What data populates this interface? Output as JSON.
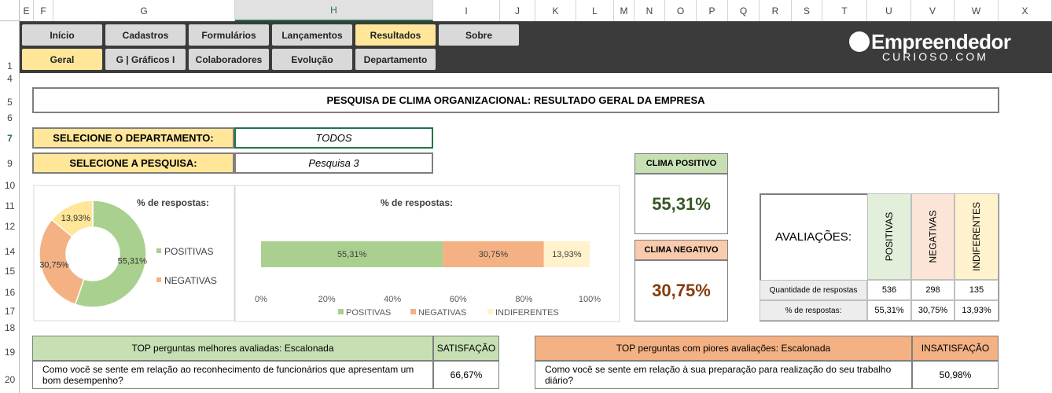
{
  "sheet": {
    "column_headers": [
      "E",
      "F",
      "G",
      "H",
      "I",
      "J",
      "K",
      "L",
      "M",
      "N",
      "O",
      "P",
      "Q",
      "R",
      "S",
      "T",
      "U",
      "V",
      "W",
      "X"
    ],
    "row_headers": [
      "1",
      "4",
      "5",
      "6",
      "7",
      "9",
      "10",
      "11",
      "12",
      "14",
      "15",
      "16",
      "17",
      "18",
      "19",
      "20"
    ]
  },
  "nav": {
    "row1": [
      "Início",
      "Cadastros",
      "Formulários",
      "Lançamentos",
      "Resultados",
      "Sobre"
    ],
    "row2": [
      "Geral",
      "G | Gráficos I",
      "Colaboradores",
      "Evolução",
      "Departamento"
    ]
  },
  "logo": {
    "name": "Empreendedor",
    "site": "CURIOSO.COM"
  },
  "title": "PESQUISA DE CLIMA ORGANIZACIONAL: RESULTADO GERAL DA EMPRESA",
  "selectors": {
    "department_label": "SELECIONE O DEPARTAMENTO:",
    "department_value": "TODOS",
    "survey_label": "SELECIONE A PESQUISA:",
    "survey_value": "Pesquisa 3"
  },
  "chart_data": [
    {
      "type": "donut",
      "title": "% de respostas:",
      "categories": [
        "POSITIVAS",
        "NEGATIVAS",
        "INDIFERENTES"
      ],
      "values": [
        55.31,
        30.75,
        13.93
      ],
      "value_labels": [
        "55,31%",
        "30,75%",
        "13,93%"
      ],
      "colors": [
        "#a9d08e",
        "#f4b183",
        "#ffe699"
      ],
      "legend": [
        {
          "name": "POSITIVAS",
          "color": "#a9d08e"
        },
        {
          "name": "NEGATIVAS",
          "color": "#f4b183"
        }
      ]
    },
    {
      "type": "stacked-bar",
      "title": "% de respostas:",
      "series": [
        {
          "name": "POSITIVAS",
          "color": "#a9d08e",
          "values": [
            55.31
          ],
          "value_labels": [
            "55,31%"
          ]
        },
        {
          "name": "NEGATIVAS",
          "color": "#f4b183",
          "values": [
            30.75
          ],
          "value_labels": [
            "30,75%"
          ]
        },
        {
          "name": "INDIFERENTES",
          "color": "#fff2cc",
          "values": [
            13.93
          ],
          "value_labels": [
            "13,93%"
          ]
        }
      ],
      "xlim": [
        0,
        100
      ],
      "xticks": [
        {
          "value": 0,
          "label": "0%"
        },
        {
          "value": 20,
          "label": "20%"
        },
        {
          "value": 40,
          "label": "40%"
        },
        {
          "value": 60,
          "label": "60%"
        },
        {
          "value": 80,
          "label": "80%"
        },
        {
          "value": 100,
          "label": "100%"
        }
      ]
    }
  ],
  "clima": {
    "positive_label": "CLIMA POSITIVO",
    "positive_value": "55,31%",
    "negative_label": "CLIMA NEGATIVO",
    "negative_value": "30,75%"
  },
  "evaluations": {
    "label": "AVALIAÇÕES:",
    "headers": [
      "POSITIVAS",
      "NEGATIVAS",
      "INDIFERENTES"
    ],
    "rows": [
      [
        "Quantidade de respostas",
        536,
        298,
        135
      ],
      [
        "% de respostas:",
        "55,31%",
        "30,75%",
        "13,93%"
      ]
    ]
  },
  "top_best": {
    "header": "TOP perguntas melhores avaliadas: Escalonada",
    "column": "SATISFAÇÃO",
    "rows": [
      [
        "Como você se sente em relação ao reconhecimento de funcionários que apresentam um bom desempenho?",
        "66,67%"
      ]
    ]
  },
  "top_worst": {
    "header": "TOP perguntas com piores avaliações: Escalonada",
    "column": "INSATISFAÇÃO",
    "rows": [
      [
        "Como você se sente em relação à  sua preparação para realização do seu trabalho diário?",
        "50,98%"
      ]
    ]
  }
}
